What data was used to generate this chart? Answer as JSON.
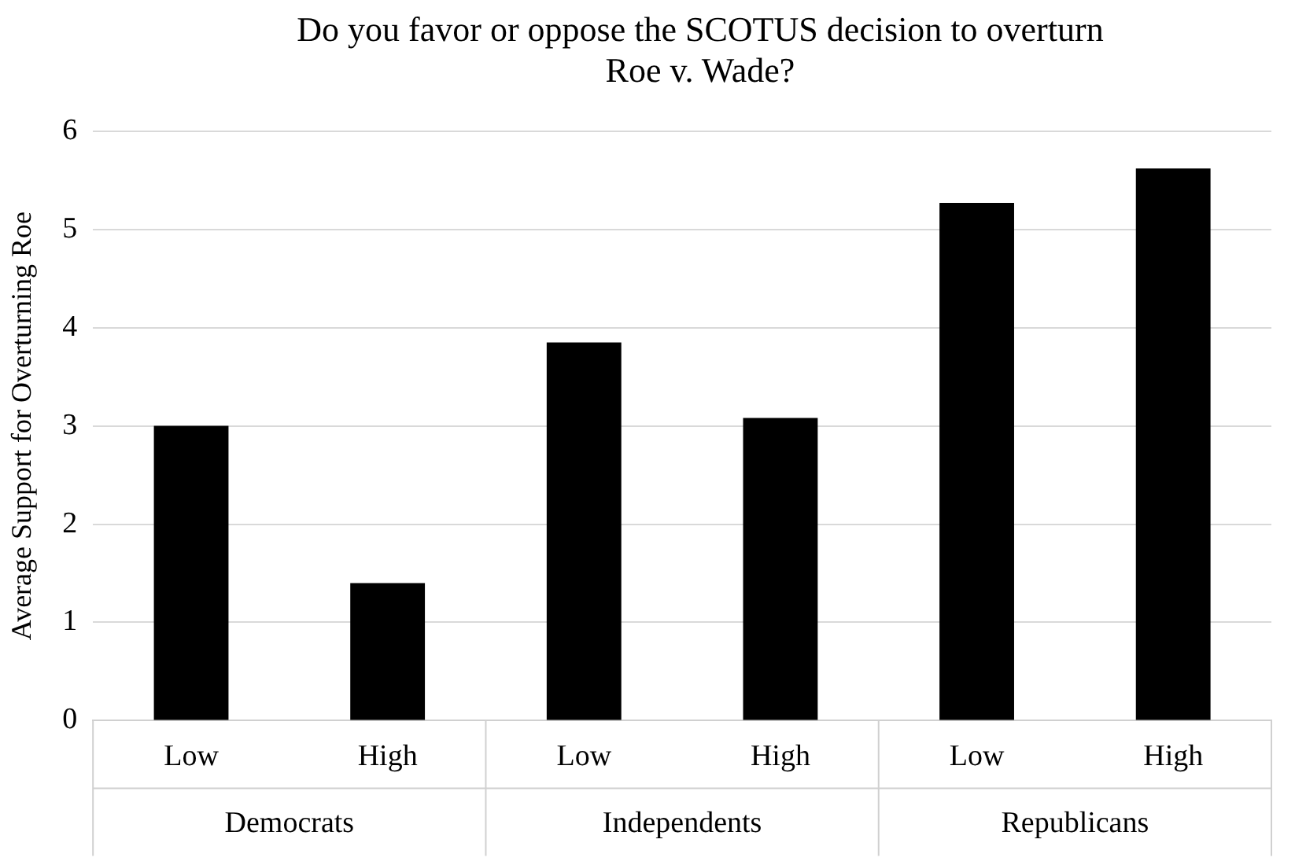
{
  "chart_data": {
    "type": "bar",
    "title": "Do you favor or oppose the SCOTUS decision to overturn Roe v. Wade?",
    "ylabel": "Average Support for Overturning Roe",
    "categories": [
      "Low",
      "High",
      "Low",
      "High",
      "Low",
      "High"
    ],
    "values": [
      3.0,
      1.4,
      3.85,
      3.08,
      5.27,
      5.62
    ],
    "color": "#000000",
    "annotations": [
      "Democrats",
      "Independents",
      "Republicans"
    ],
    "ylim": [
      0,
      6
    ],
    "yticks": [
      0,
      1,
      2,
      3,
      4,
      5,
      6
    ],
    "grid": "y"
  }
}
